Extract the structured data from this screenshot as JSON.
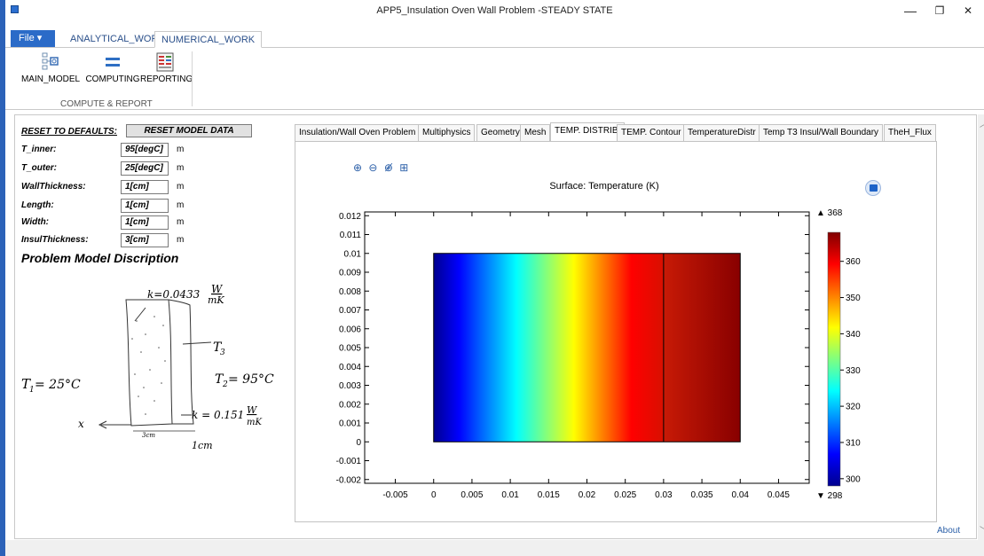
{
  "window": {
    "title": "APP5_Insulation Oven Wall Problem -STEADY STATE",
    "minimize_glyph": "—",
    "restore_glyph": "❐",
    "close_glyph": "✕"
  },
  "ribbon": {
    "file_label": "File ▾",
    "tabs": [
      {
        "label": "ANALYTICAL_WORK",
        "active": false
      },
      {
        "label": "NUMERICAL_WORK",
        "active": true
      }
    ],
    "buttons": [
      {
        "label": "MAIN_MODEL",
        "icon": "model-tree-icon"
      },
      {
        "label": "COMPUTING",
        "icon": "equals-icon"
      },
      {
        "label": "REPORTING",
        "icon": "report-icon"
      }
    ],
    "group_label": "COMPUTE & REPORT"
  },
  "form": {
    "reset_label": "RESET TO DEFAULTS:",
    "reset_button": "RESET MODEL DATA",
    "fields": [
      {
        "label": "T_inner:",
        "value": "95[degC]",
        "unit": "m"
      },
      {
        "label": "T_outer:",
        "value": "25[degC]",
        "unit": "m"
      },
      {
        "label": "WallThickness:",
        "value": "1[cm]",
        "unit": "m"
      },
      {
        "label": "Length:",
        "value": "1[cm]",
        "unit": "m"
      },
      {
        "label": "Width:",
        "value": "1[cm]",
        "unit": "m"
      },
      {
        "label": "InsulThickness:",
        "value": "3[cm]",
        "unit": "m"
      }
    ],
    "description_title": "Problem Model Discription"
  },
  "sketch": {
    "k_insul": "k=0.0433",
    "k_insul_unit_top": "W",
    "k_insul_unit_bottom": "mK",
    "t3": "T",
    "t3_sub": "3",
    "t_outer": "T",
    "t_outer_sub": "1",
    "t_outer_val": "= 25°C",
    "t_inner": "T",
    "t_inner_sub": "2",
    "t_inner_val": "= 95°C",
    "k_wall": "k = 0.151",
    "k_wall_unit_top": "W",
    "k_wall_unit_bottom": "mK",
    "x_label": "x",
    "dim_insul": "3cm",
    "dim_wall": "1cm"
  },
  "plot_tabs": [
    {
      "label": "Insulation/Wall Oven Problem",
      "active": false
    },
    {
      "label": "Multiphysics",
      "active": false
    },
    {
      "label": "Geometry",
      "active": false
    },
    {
      "label": "Mesh",
      "active": false
    },
    {
      "label": "TEMP. DISTRIB.",
      "active": true
    },
    {
      "label": "TEMP. Contour",
      "active": false
    },
    {
      "label": "TemperatureDistr",
      "active": false
    },
    {
      "label": "Temp T3 Insul/Wall Boundary",
      "active": false
    },
    {
      "label": "TheH_Flux",
      "active": false
    }
  ],
  "plot_toolbar": {
    "zoom_in": "⊕",
    "zoom_out": "⊖",
    "zoom_box": "⊕̸",
    "zoom_extents": "⊞"
  },
  "chart_data": {
    "type": "heatmap",
    "title": "Surface: Temperature (K)",
    "xlim": [
      -0.009,
      0.049
    ],
    "ylim": [
      -0.0022,
      0.0122
    ],
    "x_ticks": [
      "-0.005",
      "0",
      "0.005",
      "0.01",
      "0.015",
      "0.02",
      "0.025",
      "0.03",
      "0.035",
      "0.04",
      "0.045"
    ],
    "x_tick_values": [
      -0.005,
      0,
      0.005,
      0.01,
      0.015,
      0.02,
      0.025,
      0.03,
      0.035,
      0.04,
      0.045
    ],
    "y_ticks": [
      "-0.002",
      "-0.001",
      "0",
      "0.001",
      "0.002",
      "0.003",
      "0.004",
      "0.005",
      "0.006",
      "0.007",
      "0.008",
      "0.009",
      "0.01",
      "0.011",
      "0.012"
    ],
    "y_tick_values": [
      -0.002,
      -0.001,
      0,
      0.001,
      0.002,
      0.003,
      0.004,
      0.005,
      0.006,
      0.007,
      0.008,
      0.009,
      0.01,
      0.011,
      0.012
    ],
    "domain": {
      "x": [
        0,
        0.04
      ],
      "y": [
        0,
        0.01
      ]
    },
    "interface_x": 0.03,
    "temperature_insulation": [
      298,
      362
    ],
    "temperature_wall": [
      362,
      368
    ],
    "colorbar": {
      "max_label": "▲ 368",
      "min_label": "▼ 298",
      "range": [
        298,
        368
      ],
      "ticks": [
        "300",
        "310",
        "320",
        "330",
        "340",
        "350",
        "360"
      ],
      "tick_values": [
        300,
        310,
        320,
        330,
        340,
        350,
        360
      ]
    }
  },
  "footer": {
    "about": "About"
  }
}
